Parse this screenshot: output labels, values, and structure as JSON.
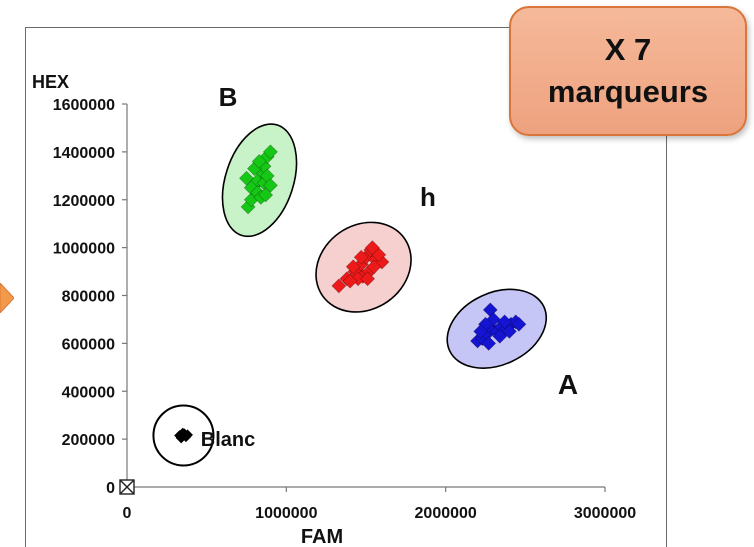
{
  "callout": {
    "line1": "X 7",
    "line2": "marqueurs"
  },
  "chart_data": {
    "type": "scatter",
    "xlabel": "FAM",
    "ylabel": "HEX",
    "xlim": [
      0,
      3000000
    ],
    "ylim": [
      0,
      1600000
    ],
    "x_ticks": [
      "0",
      "1000000",
      "2000000",
      "3000000"
    ],
    "y_ticks": [
      "0",
      "200000",
      "400000",
      "600000",
      "800000",
      "1000000",
      "1200000",
      "1400000",
      "1600000"
    ],
    "clusters": [
      {
        "label": "B",
        "color": "#16c816",
        "ellipse_fill": "#c8f2c8",
        "points": [
          [
            760000,
            1170000
          ],
          [
            780000,
            1200000
          ],
          [
            800000,
            1260000
          ],
          [
            820000,
            1280000
          ],
          [
            840000,
            1320000
          ],
          [
            860000,
            1340000
          ],
          [
            880000,
            1380000
          ],
          [
            900000,
            1400000
          ],
          [
            780000,
            1250000
          ],
          [
            820000,
            1230000
          ],
          [
            860000,
            1270000
          ],
          [
            880000,
            1300000
          ],
          [
            840000,
            1210000
          ],
          [
            800000,
            1330000
          ],
          [
            900000,
            1260000
          ],
          [
            750000,
            1290000
          ],
          [
            870000,
            1220000
          ],
          [
            830000,
            1360000
          ]
        ]
      },
      {
        "label": "h",
        "color": "#ee1a1a",
        "ellipse_fill": "#f6cfcf",
        "points": [
          [
            1330000,
            840000
          ],
          [
            1380000,
            870000
          ],
          [
            1430000,
            900000
          ],
          [
            1470000,
            930000
          ],
          [
            1500000,
            960000
          ],
          [
            1530000,
            990000
          ],
          [
            1560000,
            950000
          ],
          [
            1600000,
            940000
          ],
          [
            1480000,
            880000
          ],
          [
            1520000,
            900000
          ],
          [
            1550000,
            920000
          ],
          [
            1450000,
            870000
          ],
          [
            1420000,
            920000
          ],
          [
            1580000,
            970000
          ],
          [
            1510000,
            870000
          ],
          [
            1470000,
            960000
          ],
          [
            1540000,
            1000000
          ],
          [
            1400000,
            860000
          ]
        ]
      },
      {
        "label": "A",
        "color": "#1414d2",
        "ellipse_fill": "#c6c6f6",
        "points": [
          [
            2200000,
            610000
          ],
          [
            2230000,
            620000
          ],
          [
            2260000,
            640000
          ],
          [
            2290000,
            660000
          ],
          [
            2320000,
            650000
          ],
          [
            2350000,
            670000
          ],
          [
            2380000,
            660000
          ],
          [
            2410000,
            680000
          ],
          [
            2440000,
            690000
          ],
          [
            2460000,
            680000
          ],
          [
            2280000,
            740000
          ],
          [
            2300000,
            700000
          ],
          [
            2250000,
            680000
          ],
          [
            2340000,
            630000
          ],
          [
            2400000,
            650000
          ],
          [
            2220000,
            650000
          ],
          [
            2370000,
            690000
          ],
          [
            2270000,
            600000
          ]
        ]
      },
      {
        "label": "Blanc",
        "color": "#000000",
        "points": [
          [
            330000,
            215000
          ],
          [
            350000,
            225000
          ],
          [
            370000,
            210000
          ],
          [
            340000,
            205000
          ],
          [
            360000,
            222000
          ],
          [
            380000,
            218000
          ],
          [
            350000,
            212000
          ]
        ]
      }
    ],
    "origin_marker": [
      0,
      0
    ]
  }
}
